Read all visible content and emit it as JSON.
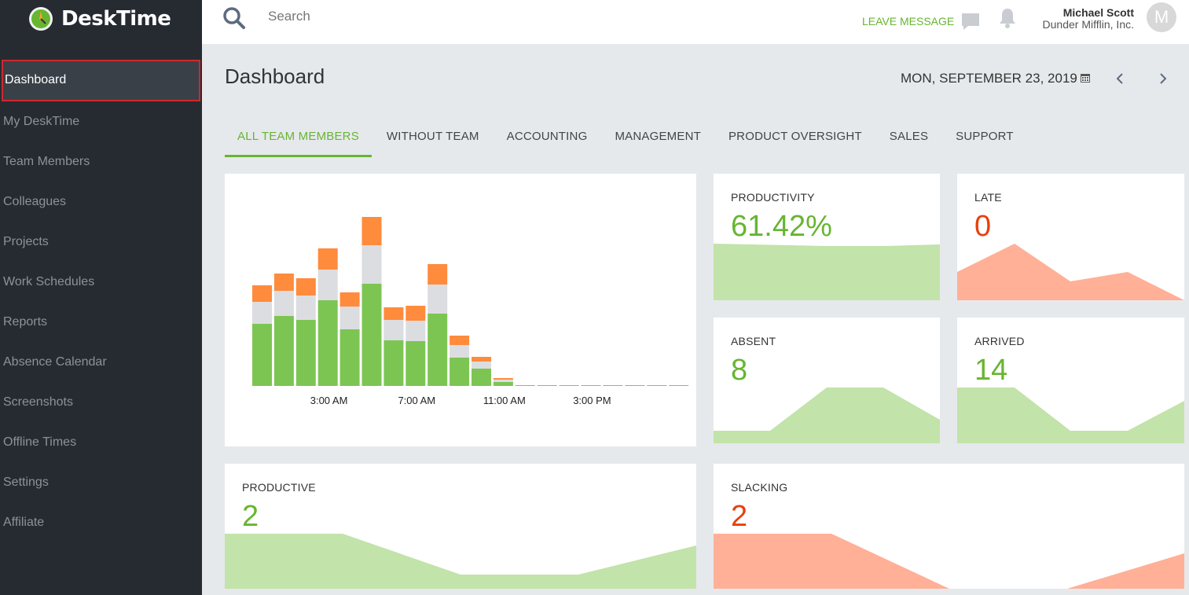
{
  "app": {
    "name": "DeskTime"
  },
  "sidebar": {
    "items": [
      {
        "label": "Dashboard",
        "active": true
      },
      {
        "label": "My DeskTime",
        "active": false
      },
      {
        "label": "Team Members",
        "active": false
      },
      {
        "label": "Colleagues",
        "active": false
      },
      {
        "label": "Projects",
        "active": false
      },
      {
        "label": "Work Schedules",
        "active": false
      },
      {
        "label": "Reports",
        "active": false
      },
      {
        "label": "Absence Calendar",
        "active": false
      },
      {
        "label": "Screenshots",
        "active": false
      },
      {
        "label": "Offline Times",
        "active": false
      },
      {
        "label": "Settings",
        "active": false
      },
      {
        "label": "Affiliate",
        "active": false
      }
    ]
  },
  "topbar": {
    "search_placeholder": "Search",
    "leave_message": "LEAVE MESSAGE",
    "user": {
      "name": "Michael Scott",
      "company": "Dunder Mifflin, Inc.",
      "initial": "M"
    }
  },
  "header": {
    "title": "Dashboard",
    "date": "MON, SEPTEMBER 23, 2019"
  },
  "tabs": [
    {
      "label": "ALL TEAM MEMBERS",
      "active": true
    },
    {
      "label": "WITHOUT TEAM",
      "active": false
    },
    {
      "label": "ACCOUNTING",
      "active": false
    },
    {
      "label": "MANAGEMENT",
      "active": false
    },
    {
      "label": "PRODUCT OVERSIGHT",
      "active": false
    },
    {
      "label": "SALES",
      "active": false
    },
    {
      "label": "SUPPORT",
      "active": false
    }
  ],
  "colors": {
    "accent_green": "#67b531",
    "accent_red": "#e8400c",
    "bar_productive": "#7dc553",
    "bar_neutral": "#dcdde0",
    "bar_unproductive": "#ff8b3d",
    "spark_green": "#c2e3a9",
    "spark_red": "#ffb097",
    "sidebar_bg": "#262b32"
  },
  "stats": {
    "productivity": {
      "label": "PRODUCTIVITY",
      "value": "61.42%"
    },
    "late": {
      "label": "LATE",
      "value": "0"
    },
    "absent": {
      "label": "ABSENT",
      "value": "8"
    },
    "arrived": {
      "label": "ARRIVED",
      "value": "14"
    },
    "productive": {
      "label": "PRODUCTIVE",
      "value": "2"
    },
    "slacking": {
      "label": "SLACKING",
      "value": "2"
    }
  },
  "chart_data": {
    "type": "bar",
    "stacked": true,
    "tick_labels": [
      "3:00 AM",
      "7:00 AM",
      "11:00 AM",
      "3:00 PM"
    ],
    "tick_positions": [
      3.5,
      7.5,
      11.5,
      15.5
    ],
    "categories": [
      0,
      1,
      2,
      3,
      4,
      5,
      6,
      7,
      8,
      9,
      10,
      11,
      12,
      13,
      14,
      15,
      16,
      17,
      18,
      19
    ],
    "series": [
      {
        "key": "productive",
        "values": [
          79,
          89,
          84,
          109,
          72,
          130,
          58,
          57,
          92,
          36,
          22,
          5,
          0,
          0,
          0,
          0,
          0,
          0,
          0,
          0
        ]
      },
      {
        "key": "neutral",
        "values": [
          28,
          32,
          31,
          39,
          29,
          49,
          26,
          26,
          37,
          16,
          9,
          3,
          0,
          0,
          0,
          0,
          0,
          0,
          0,
          0
        ]
      },
      {
        "key": "unproductive",
        "values": [
          21,
          22,
          22,
          27,
          18,
          36,
          16,
          19,
          26,
          12,
          6,
          2,
          1,
          1,
          1,
          1,
          1,
          1,
          1,
          1
        ]
      }
    ],
    "ylim": [
      0,
      230
    ],
    "grid": false,
    "legend": "none"
  }
}
